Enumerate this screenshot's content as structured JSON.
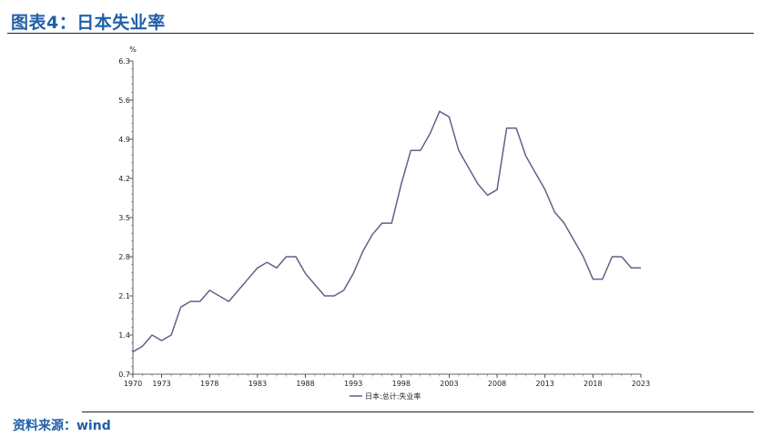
{
  "header": {
    "title": "图表4：日本失业率"
  },
  "footer": {
    "source": "资料来源：wind"
  },
  "chart_data": {
    "type": "line",
    "title": "",
    "xlabel": "",
    "ylabel": "%",
    "ylim": [
      0.7,
      6.3
    ],
    "xlim": [
      1970,
      2023
    ],
    "yticks": [
      "0.7",
      "1.4",
      "2.1",
      "2.8",
      "3.5",
      "4.2",
      "4.9",
      "5.6",
      "6.3"
    ],
    "xticks": [
      "1970",
      "1973",
      "1978",
      "1983",
      "1988",
      "1993",
      "1998",
      "2003",
      "2008",
      "2013",
      "2018",
      "2023"
    ],
    "legend_position": "bottom",
    "grid": false,
    "series": [
      {
        "name": "日本:总计:失业率",
        "color": "#5d6487",
        "x": [
          1970,
          1971,
          1972,
          1973,
          1974,
          1975,
          1976,
          1977,
          1978,
          1979,
          1980,
          1981,
          1982,
          1983,
          1984,
          1985,
          1986,
          1987,
          1988,
          1989,
          1990,
          1991,
          1992,
          1993,
          1994,
          1995,
          1996,
          1997,
          1998,
          1999,
          2000,
          2001,
          2002,
          2003,
          2004,
          2005,
          2006,
          2007,
          2008,
          2009,
          2010,
          2011,
          2012,
          2013,
          2014,
          2015,
          2016,
          2017,
          2018,
          2019,
          2020,
          2021,
          2022,
          2023
        ],
        "values": [
          1.1,
          1.2,
          1.4,
          1.3,
          1.4,
          1.9,
          2.0,
          2.0,
          2.2,
          2.1,
          2.0,
          2.2,
          2.4,
          2.6,
          2.7,
          2.6,
          2.8,
          2.8,
          2.5,
          2.3,
          2.1,
          2.1,
          2.2,
          2.5,
          2.9,
          3.2,
          3.4,
          3.4,
          4.1,
          4.7,
          4.7,
          5.0,
          5.4,
          5.3,
          4.7,
          4.4,
          4.1,
          3.9,
          4.0,
          5.1,
          5.1,
          4.6,
          4.3,
          4.0,
          3.6,
          3.4,
          3.1,
          2.8,
          2.4,
          2.4,
          2.8,
          2.8,
          2.6,
          2.6
        ]
      }
    ]
  }
}
